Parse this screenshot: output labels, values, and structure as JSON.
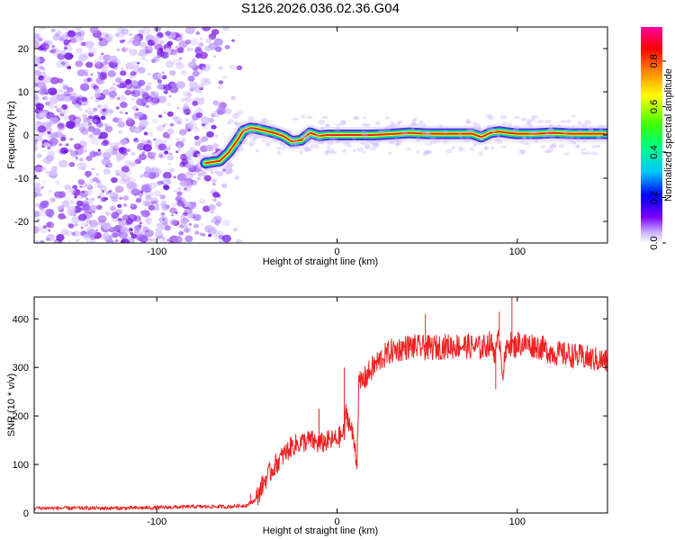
{
  "title": "S126.2026.036.02.36.G04",
  "colors": {
    "snr_line": "#ee2222",
    "spectrum_scatter": "#8a2be2",
    "ridge_core": "#e8231f",
    "ridge_edge": "#00e0a0",
    "ridge_halo": "#3a10e0",
    "axes": "#000000"
  },
  "chart_data": [
    {
      "type": "heatmap",
      "xlabel": "Height of straight line (km)",
      "ylabel": "Frequency (Hz)",
      "xlim": [
        -168,
        150
      ],
      "ylim": [
        -25,
        25
      ],
      "xticks": [
        -100,
        0,
        100
      ],
      "xtick_labels": [
        "-100",
        "0",
        "100"
      ],
      "yticks": [
        -20,
        -10,
        0,
        10,
        20
      ],
      "ytick_labels": [
        "-20",
        "-10",
        "0",
        "10",
        "20"
      ],
      "colorbar": {
        "label": "Normalized spectral amplitude",
        "range": [
          0,
          0.95
        ],
        "ticks": [
          0.0,
          0.2,
          0.4,
          0.6,
          0.8
        ],
        "tick_labels": [
          "0.0",
          "0.2",
          "0.4",
          "0.6",
          "0.8"
        ],
        "colormap": [
          "#ffffff",
          "#7b00ff",
          "#0000ff",
          "#00c8ff",
          "#00ff80",
          "#40ff00",
          "#ffff00",
          "#ff8000",
          "#ff0000",
          "#ff00a0"
        ]
      },
      "noise_region_x": [
        -168,
        -55
      ],
      "ridge": {
        "x": [
          -73,
          -65,
          -60,
          -55,
          -52,
          -48,
          -45,
          -40,
          -35,
          -30,
          -25,
          -20,
          -15,
          -10,
          -5,
          0,
          10,
          20,
          30,
          40,
          50,
          60,
          70,
          75,
          80,
          85,
          90,
          95,
          100,
          110,
          120,
          130,
          140,
          150
        ],
        "y": [
          -6.5,
          -6,
          -4,
          -1,
          1,
          1.6,
          1.5,
          1,
          0.5,
          -0.2,
          -1.5,
          -1.2,
          0.5,
          -0.2,
          0,
          0,
          0,
          0,
          0.2,
          0.5,
          0.3,
          0.3,
          0.3,
          0.3,
          -0.5,
          0.5,
          0.8,
          0.5,
          0.3,
          0.3,
          0.5,
          0.3,
          0.3,
          0.3
        ]
      }
    },
    {
      "type": "line",
      "xlabel": "Height of straight line (km)",
      "ylabel": "SNR (10 * v/v)",
      "xlim": [
        -168,
        150
      ],
      "ylim": [
        0,
        445
      ],
      "xticks": [
        -100,
        0,
        100
      ],
      "xtick_labels": [
        "-100",
        "0",
        "100"
      ],
      "yticks": [
        0,
        100,
        200,
        300,
        400
      ],
      "ytick_labels": [
        "0",
        "100",
        "200",
        "300",
        "400"
      ],
      "series": [
        {
          "x": [
            -168,
            -140,
            -120,
            -100,
            -80,
            -60,
            -50,
            -45,
            -40,
            -35,
            -30,
            -25,
            -20,
            -15,
            -10,
            -5,
            0,
            4,
            5,
            8,
            10,
            11,
            12,
            15,
            20,
            25,
            30,
            40,
            50,
            60,
            70,
            80,
            85,
            88,
            90,
            92,
            95,
            98,
            100,
            110,
            120,
            130,
            140,
            150
          ],
          "values": [
            10,
            10,
            10,
            11,
            13,
            13,
            16,
            28,
            68,
            95,
            118,
            138,
            145,
            150,
            142,
            148,
            152,
            165,
            208,
            170,
            135,
            100,
            262,
            275,
            300,
            320,
            333,
            343,
            340,
            343,
            345,
            340,
            350,
            330,
            365,
            290,
            355,
            340,
            350,
            345,
            330,
            325,
            318,
            312
          ],
          "spikes": {
            "x": [
              -48,
              -10,
              4,
              11,
              49,
              88,
              90,
              97
            ],
            "values": [
              40,
              215,
              300,
              90,
              410,
              255,
              415,
              445
            ]
          }
        }
      ]
    }
  ]
}
